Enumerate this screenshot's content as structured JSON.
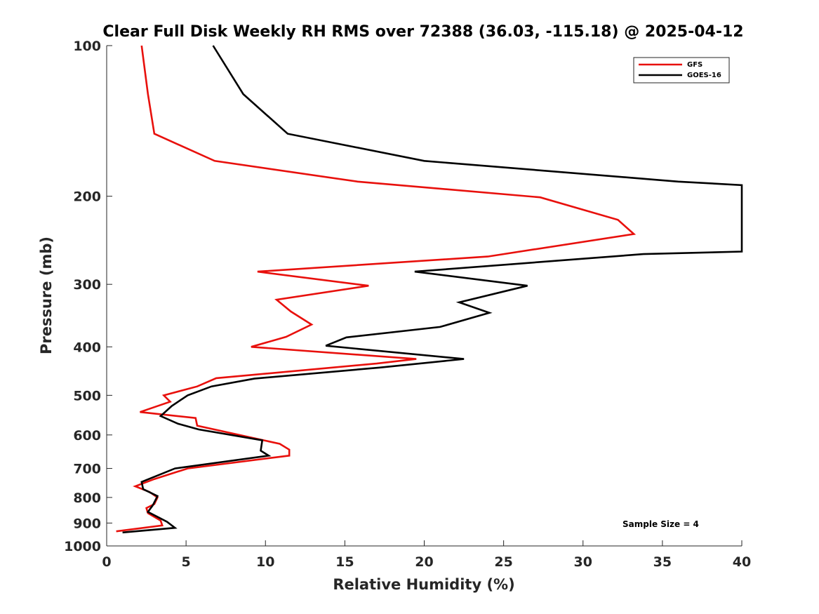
{
  "chart_data": {
    "type": "line",
    "title": "Clear Full Disk Weekly RH RMS over 72388 (36.03, -115.18) @ 2025-04-12",
    "xlabel": "Relative Humidity (%)",
    "ylabel": "Pressure (mb)",
    "xlim": [
      0,
      40
    ],
    "ylim": [
      100,
      1000
    ],
    "y_scale": "log",
    "y_reversed": true,
    "x_ticks": [
      0,
      5,
      10,
      15,
      20,
      25,
      30,
      35,
      40
    ],
    "y_ticks": [
      100,
      200,
      300,
      400,
      500,
      600,
      700,
      800,
      900,
      1000
    ],
    "legend_location": "top-right",
    "annotation": "Sample Size = 4",
    "series": [
      {
        "name": "GFS",
        "color": "#e8100c",
        "points": [
          [
            2.2,
            100
          ],
          [
            2.6,
            125
          ],
          [
            3.0,
            150
          ],
          [
            6.8,
            170
          ],
          [
            15.8,
            187
          ],
          [
            27.3,
            201
          ],
          [
            32.2,
            223
          ],
          [
            33.2,
            238
          ],
          [
            24.0,
            264
          ],
          [
            9.5,
            283
          ],
          [
            16.5,
            302
          ],
          [
            10.7,
            322
          ],
          [
            11.6,
            340
          ],
          [
            12.9,
            361
          ],
          [
            11.3,
            382
          ],
          [
            9.1,
            400
          ],
          [
            19.5,
            423
          ],
          [
            17.0,
            432
          ],
          [
            6.9,
            462
          ],
          [
            5.7,
            480
          ],
          [
            3.6,
            500
          ],
          [
            4.0,
            515
          ],
          [
            2.1,
            540
          ],
          [
            5.6,
            555
          ],
          [
            5.7,
            575
          ],
          [
            10.9,
            625
          ],
          [
            11.5,
            642
          ],
          [
            11.5,
            660
          ],
          [
            5.1,
            700
          ],
          [
            3.0,
            735
          ],
          [
            1.8,
            760
          ],
          [
            2.7,
            780
          ],
          [
            3.2,
            800
          ],
          [
            3.0,
            825
          ],
          [
            2.5,
            840
          ],
          [
            2.6,
            860
          ],
          [
            3.4,
            890
          ],
          [
            3.5,
            910
          ],
          [
            0.6,
            935
          ]
        ]
      },
      {
        "name": "GOES-16",
        "color": "#000000",
        "points": [
          [
            6.7,
            100
          ],
          [
            8.6,
            125
          ],
          [
            11.4,
            150
          ],
          [
            20.0,
            170
          ],
          [
            36.0,
            187
          ],
          [
            40.0,
            190
          ],
          [
            40.0,
            258
          ],
          [
            33.8,
            261
          ],
          [
            19.4,
            283
          ],
          [
            26.5,
            302
          ],
          [
            22.2,
            326
          ],
          [
            24.1,
            342
          ],
          [
            21.0,
            365
          ],
          [
            15.1,
            383
          ],
          [
            13.8,
            398
          ],
          [
            22.5,
            423
          ],
          [
            17.2,
            440
          ],
          [
            9.3,
            463
          ],
          [
            6.6,
            480
          ],
          [
            5.1,
            500
          ],
          [
            4.1,
            525
          ],
          [
            3.4,
            550
          ],
          [
            4.5,
            570
          ],
          [
            5.8,
            585
          ],
          [
            9.8,
            615
          ],
          [
            9.7,
            645
          ],
          [
            10.2,
            660
          ],
          [
            4.3,
            700
          ],
          [
            2.2,
            745
          ],
          [
            2.3,
            770
          ],
          [
            3.2,
            795
          ],
          [
            2.9,
            830
          ],
          [
            2.6,
            855
          ],
          [
            3.8,
            895
          ],
          [
            4.3,
            920
          ],
          [
            1.0,
            940
          ]
        ]
      }
    ]
  }
}
